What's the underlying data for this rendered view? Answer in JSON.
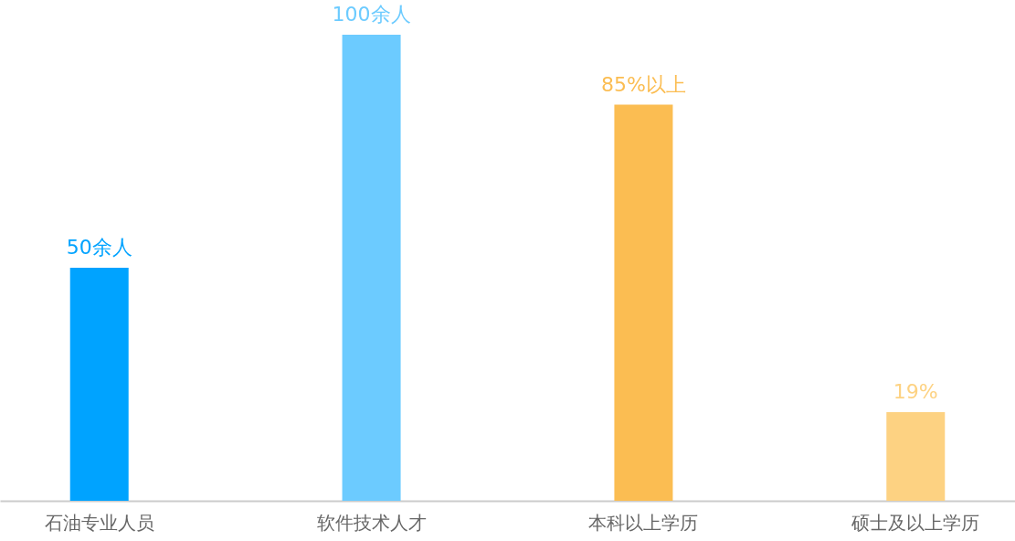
{
  "chart_data": {
    "type": "bar",
    "categories": [
      "石油专业人员",
      "软件技术人才",
      "本科以上学历",
      "硕士及以上学历"
    ],
    "values": [
      50,
      100,
      85,
      19
    ],
    "value_labels": [
      "50余人",
      "100余人",
      "85%以上",
      "19%"
    ],
    "colors": [
      "#00a3ff",
      "#6ccbff",
      "#fbbd52",
      "#fdd282"
    ],
    "tick_labels": "x"
  }
}
